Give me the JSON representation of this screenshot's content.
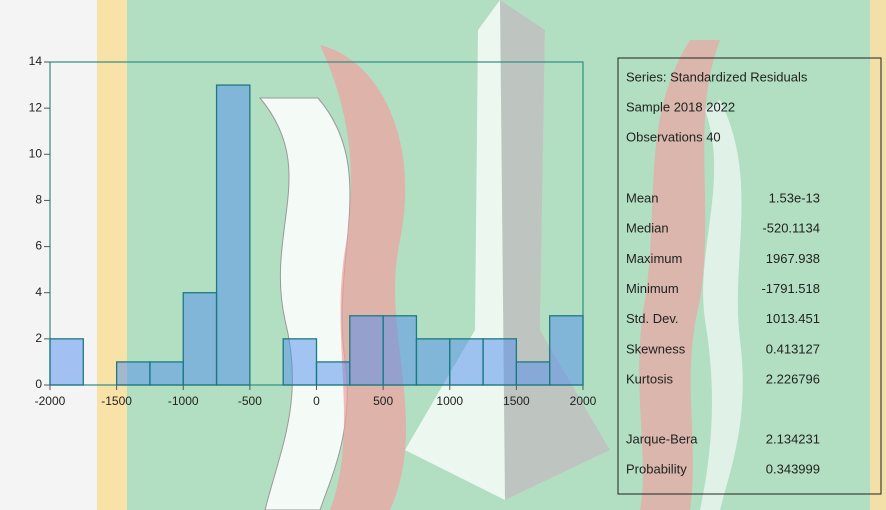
{
  "chart_data": {
    "type": "histogram",
    "bins": [
      -2000,
      -1750,
      -1500,
      -1250,
      -1000,
      -750,
      -500,
      -250,
      0,
      250,
      500,
      750,
      1000,
      1250,
      1500,
      1750,
      2000
    ],
    "values": [
      2,
      0,
      1,
      1,
      4,
      13,
      0,
      2,
      1,
      3,
      3,
      2,
      2,
      2,
      1,
      3
    ],
    "color": "#4f8ef0",
    "xlim": [
      -2000,
      2000
    ],
    "xticks": [
      -2000,
      -1500,
      -1000,
      -500,
      0,
      500,
      1000,
      1500,
      2000
    ],
    "ylim": [
      0,
      14
    ],
    "yticks": [
      0,
      2,
      4,
      6,
      8,
      10,
      12,
      14
    ],
    "stats": {
      "header": [
        "Series: Standardized Residuals",
        "Sample 2018 2022",
        "Observations 40"
      ],
      "rows": [
        [
          "Mean",
          "1.53e-13"
        ],
        [
          "Median",
          "-520.1134"
        ],
        [
          "Maximum",
          "1967.938"
        ],
        [
          "Minimum",
          "-1791.518"
        ],
        [
          "Std. Dev.",
          "1013.451"
        ],
        [
          "Skewness",
          "0.413127"
        ],
        [
          "Kurtosis",
          "2.226796"
        ]
      ],
      "tests": [
        [
          "Jarque-Bera",
          "2.134231"
        ],
        [
          "Probability",
          "0.343999"
        ]
      ]
    }
  }
}
